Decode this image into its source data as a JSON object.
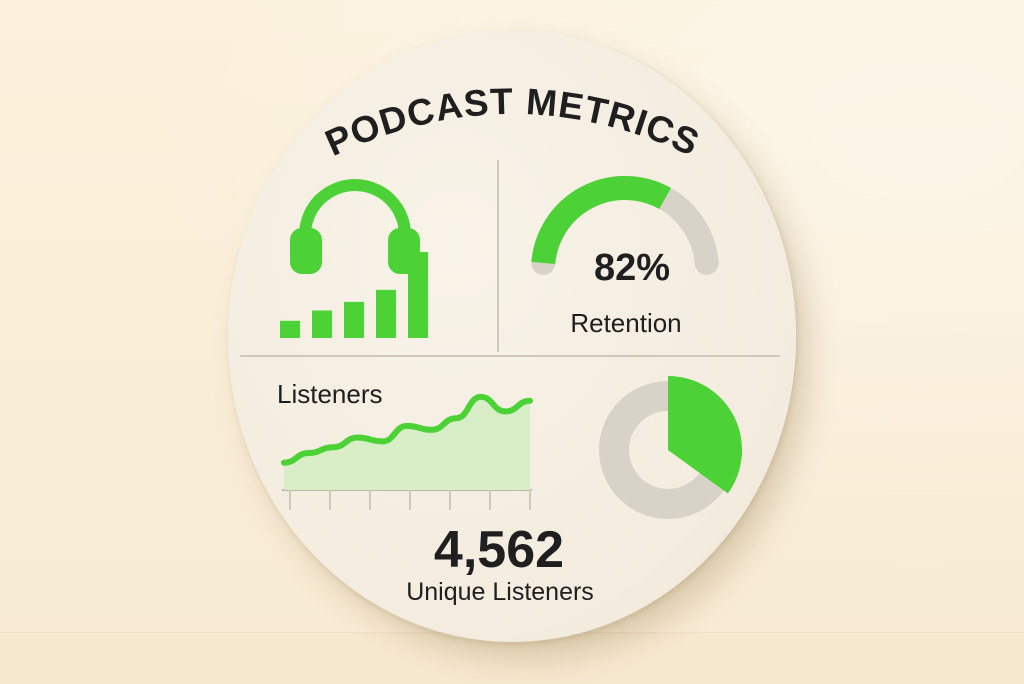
{
  "title": "PODCAST METRICS",
  "retention": {
    "value_label": "82%",
    "label": "Retention",
    "percent": 82
  },
  "listeners": {
    "label": "Listeners",
    "trend": [
      2,
      3,
      3.6,
      4.6,
      4.2,
      5.8,
      5.4,
      6.6,
      8.8,
      7.3,
      8.4
    ]
  },
  "unique": {
    "value": "4,562",
    "label": "Unique Listeners"
  },
  "bars": [
    1,
    1.6,
    2.1,
    2.8,
    5
  ],
  "donut": {
    "highlight_fraction": 0.35
  },
  "colors": {
    "accent": "#4cd137",
    "muted": "#d8d3c8",
    "area": "#d7eec6",
    "text": "#1f1f1f"
  },
  "icons": [
    "headphones-icon"
  ]
}
